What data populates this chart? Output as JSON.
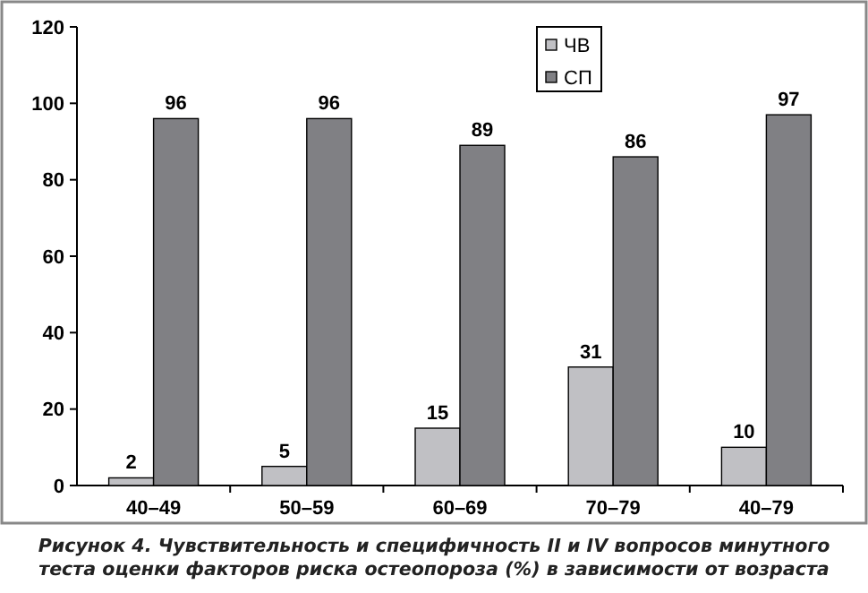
{
  "chart_data": {
    "type": "bar",
    "categories": [
      "40–49",
      "50–59",
      "60–69",
      "70–79",
      "40–79"
    ],
    "series": [
      {
        "name": "ЧВ",
        "color": "#c0c0c4",
        "values": [
          2,
          5,
          15,
          31,
          10
        ]
      },
      {
        "name": "СП",
        "color": "#808084",
        "values": [
          96,
          96,
          89,
          86,
          97
        ]
      }
    ],
    "ylim": [
      0,
      120
    ],
    "yticks": [
      0,
      20,
      40,
      60,
      80,
      100,
      120
    ],
    "grid": false,
    "legend": "top right",
    "data_labels": true,
    "annotations": [
      "Рисунок 4. Чувствительность и специфичность II и IV вопросов минутного теста оценки факторов риска остеопороза (%) в зависимости от возраста"
    ]
  }
}
